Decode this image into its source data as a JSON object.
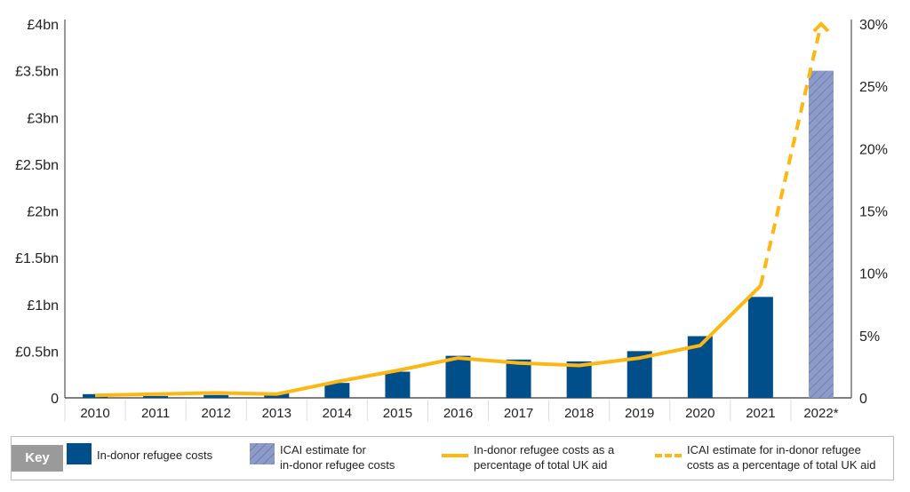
{
  "chart_data": {
    "type": "bar",
    "categories": [
      "2010",
      "2011",
      "2012",
      "2013",
      "2014",
      "2015",
      "2016",
      "2017",
      "2018",
      "2019",
      "2020",
      "2021",
      "2022*"
    ],
    "series": [
      {
        "name": "In-donor refugee costs",
        "axis": "left",
        "kind": "bar",
        "values": [
          0.04,
          0.02,
          0.03,
          0.05,
          0.16,
          0.28,
          0.45,
          0.41,
          0.39,
          0.5,
          0.66,
          1.08,
          null
        ]
      },
      {
        "name": "ICAI estimate for in-donor refugee costs",
        "axis": "left",
        "kind": "bar-hatched",
        "values": [
          null,
          null,
          null,
          null,
          null,
          null,
          null,
          null,
          null,
          null,
          null,
          null,
          3.5
        ]
      },
      {
        "name": "In-donor refugee costs as a percentage of total UK aid",
        "axis": "right",
        "kind": "line",
        "values": [
          0.2,
          0.3,
          0.4,
          0.3,
          1.3,
          2.2,
          3.2,
          2.8,
          2.6,
          3.2,
          4.2,
          9.0,
          null
        ]
      },
      {
        "name": "ICAI estimate for in-donor refugee costs as a percentage of total UK aid",
        "axis": "right",
        "kind": "dashed-line",
        "values": [
          null,
          null,
          null,
          null,
          null,
          null,
          null,
          null,
          null,
          null,
          null,
          9.0,
          30
        ]
      }
    ],
    "ylim_left": [
      0,
      4
    ],
    "ylim_right": [
      0,
      30
    ],
    "left_ticks": [
      "0",
      "£0.5bn",
      "£1bn",
      "£1.5bn",
      "£2bn",
      "£2.5bn",
      "£3bn",
      "£3.5bn",
      "£4bn"
    ],
    "right_ticks": [
      "0",
      "5%",
      "10%",
      "15%",
      "20%",
      "25%",
      "30%"
    ],
    "grid": false,
    "legend": "bottom",
    "colors": {
      "bar": "#004f8b",
      "estimate": "#8d9bc8",
      "line": "#fdb714"
    }
  },
  "key": {
    "title": "Key",
    "items": [
      "In-donor refugee costs",
      "ICAI estimate for\nin-donor refugee costs",
      "In-donor refugee costs as a\npercentage of total UK aid",
      "ICAI estimate for in-donor refugee\ncosts as a percentage of total UK aid"
    ]
  }
}
